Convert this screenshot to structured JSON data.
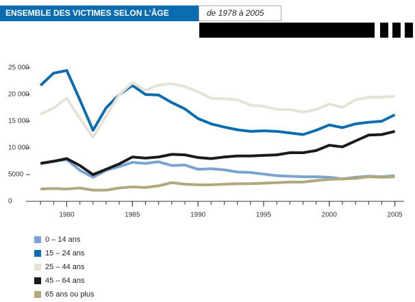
{
  "chart_data": {
    "type": "line",
    "title": "ENSEMBLE DES VICTIMES SELON L’ÂGE",
    "subtitle": "de 1978 à 2005",
    "x": [
      1978,
      1979,
      1980,
      1981,
      1982,
      1983,
      1984,
      1985,
      1986,
      1987,
      1988,
      1989,
      1990,
      1991,
      1992,
      1993,
      1994,
      1995,
      1996,
      1997,
      1998,
      1999,
      2000,
      2001,
      2002,
      2003,
      2004,
      2005
    ],
    "xlim": [
      1977,
      2005.7
    ],
    "xticks": [
      1980,
      1985,
      1990,
      1995,
      2000,
      2005
    ],
    "ylim": [
      0,
      25000
    ],
    "yticks": [
      {
        "value": 0,
        "label": "0"
      },
      {
        "value": 5000,
        "label": "5000"
      },
      {
        "value": 10000,
        "label": "10 000"
      },
      {
        "value": 15000,
        "label": "15 000"
      },
      {
        "value": 20000,
        "label": "20 000"
      },
      {
        "value": 25000,
        "label": "25 000"
      }
    ],
    "series": [
      {
        "name": "0 – 14 ans",
        "color": "#7ba3d1",
        "values": [
          7100,
          7500,
          7800,
          5800,
          4500,
          5800,
          6500,
          7300,
          7100,
          7400,
          6700,
          6800,
          6000,
          6100,
          5900,
          5500,
          5400,
          5100,
          4800,
          4700,
          4600,
          4600,
          4500,
          4200,
          4500,
          4700,
          4600,
          4800
        ]
      },
      {
        "name": "15 – 24 ans",
        "color": "#0b6db0",
        "values": [
          21700,
          24000,
          24500,
          19000,
          13300,
          17500,
          20000,
          21700,
          20000,
          19900,
          18500,
          17300,
          15500,
          14500,
          13900,
          13400,
          13100,
          13200,
          13100,
          12800,
          12500,
          13300,
          14300,
          13800,
          14500,
          14800,
          15000,
          16200
        ]
      },
      {
        "name": "25 – 44 ans",
        "color": "#e5e3d5",
        "values": [
          16300,
          17500,
          19300,
          15500,
          12000,
          16000,
          20000,
          22200,
          20800,
          21800,
          22000,
          21500,
          20500,
          19300,
          19200,
          19000,
          18000,
          17800,
          17200,
          17200,
          16700,
          17200,
          18200,
          17600,
          19000,
          19500,
          19500,
          19700
        ]
      },
      {
        "name": "45 – 64 ans",
        "color": "#1a1a1a",
        "values": [
          7100,
          7500,
          8000,
          6700,
          5000,
          6000,
          7000,
          8300,
          8100,
          8300,
          8800,
          8700,
          8200,
          8000,
          8300,
          8500,
          8500,
          8600,
          8700,
          9100,
          9100,
          9500,
          10500,
          10200,
          11300,
          12400,
          12500,
          13100
        ]
      },
      {
        "name": "65 ans ou plus",
        "color": "#b1a97d",
        "values": [
          2300,
          2400,
          2300,
          2500,
          2100,
          2100,
          2500,
          2700,
          2600,
          2900,
          3500,
          3200,
          3100,
          3100,
          3200,
          3300,
          3300,
          3400,
          3500,
          3600,
          3600,
          3900,
          4100,
          4200,
          4300,
          4600,
          4500,
          4600
        ]
      }
    ]
  }
}
